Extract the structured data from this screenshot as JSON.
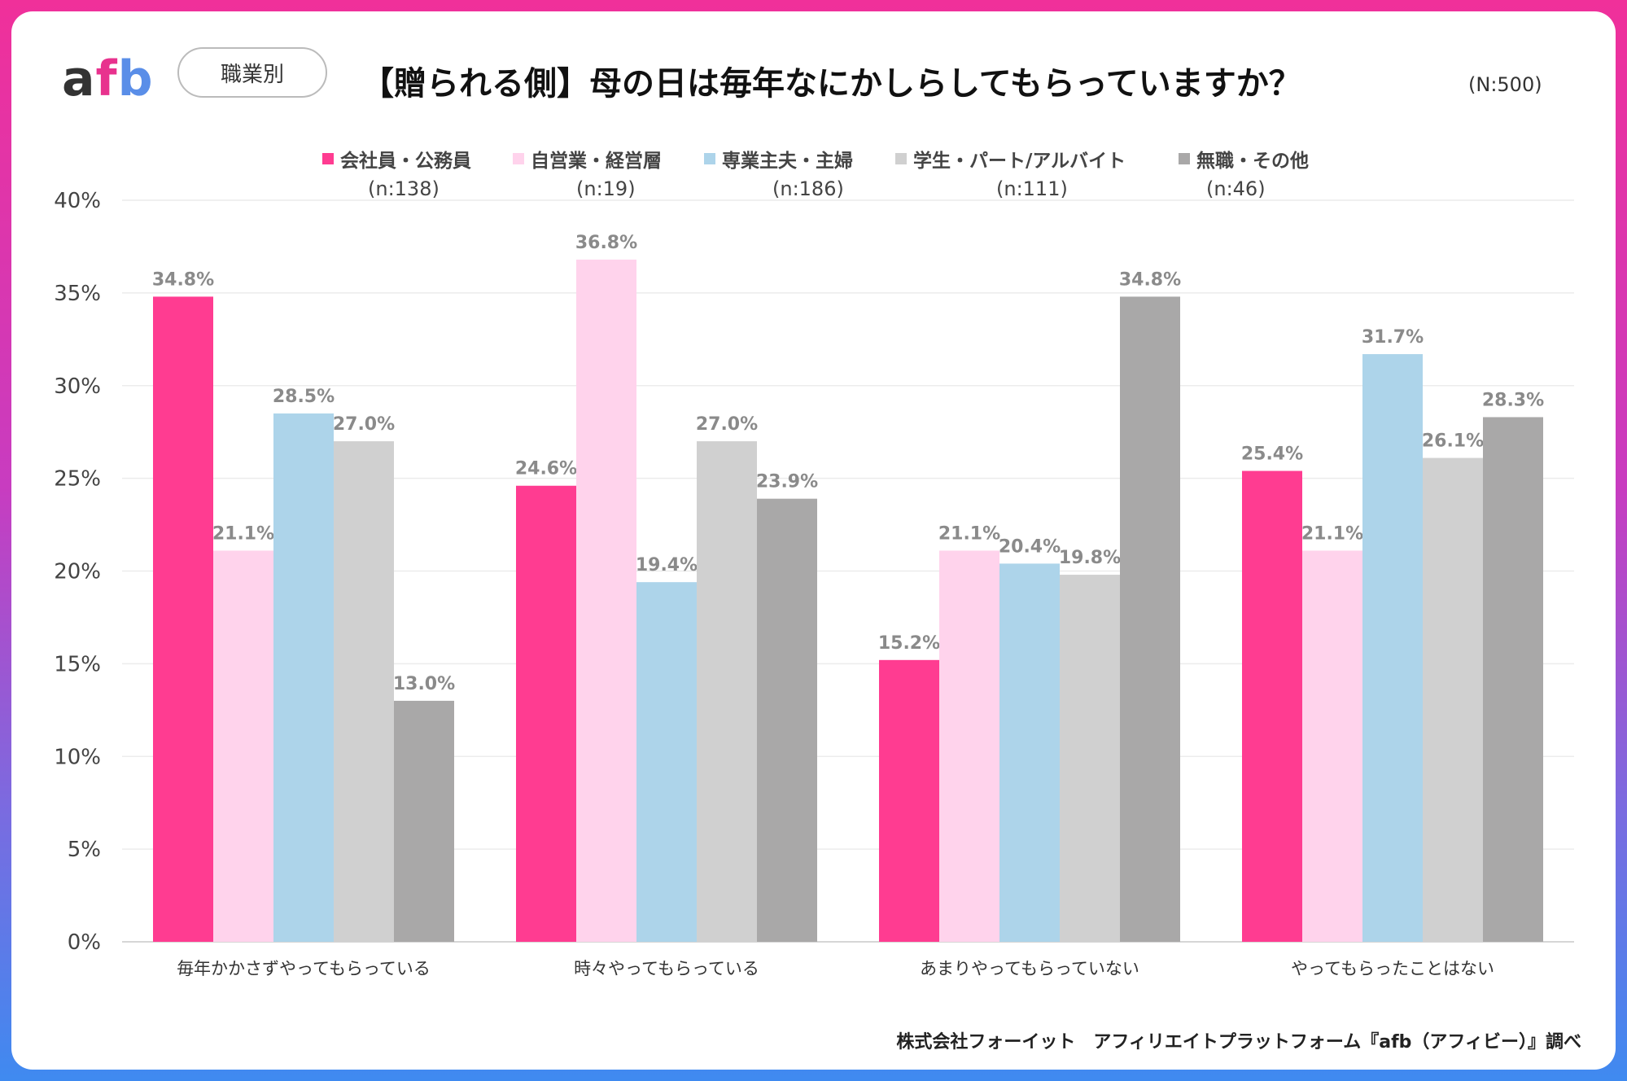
{
  "brand": {
    "logo_a": "a",
    "logo_f": "f",
    "logo_b": "b"
  },
  "header": {
    "badge": "職業別",
    "title": "【贈られる側】母の日は毎年なにかしらしてもらっていますか？",
    "sample": "(N:500)"
  },
  "footer": "株式会社フォーイット　アフィリエイトプラットフォーム『afb（アフィビー）』調べ",
  "chart_data": {
    "type": "bar",
    "title": "【贈られる側】母の日は毎年なにかしらしてもらっていますか？",
    "xlabel": "",
    "ylabel": "",
    "ylim": [
      0,
      40
    ],
    "yticks": [
      0,
      5,
      10,
      15,
      20,
      25,
      30,
      35,
      40
    ],
    "ytick_labels": [
      "0%",
      "5%",
      "10%",
      "15%",
      "20%",
      "25%",
      "30%",
      "35%",
      "40%"
    ],
    "grid": true,
    "legend_position": "top",
    "categories": [
      "毎年かかさずやってもらっている",
      "時々やってもらっている",
      "あまりやってもらっていない",
      "やってもらったことはない"
    ],
    "series": [
      {
        "name": "会社員・公務員",
        "n": "(n:138)",
        "color": "#ff3c91",
        "values": [
          34.8,
          24.6,
          15.2,
          25.4
        ],
        "labels": [
          "34.8%",
          "24.6%",
          "15.2%",
          "25.4%"
        ]
      },
      {
        "name": "自営業・経営層",
        "n": "(n:19)",
        "color": "#ffd3ec",
        "values": [
          21.1,
          36.8,
          21.1,
          21.1
        ],
        "labels": [
          "21.1%",
          "36.8%",
          "21.1%",
          "21.1%"
        ]
      },
      {
        "name": "専業主夫・主婦",
        "n": "(n:186)",
        "color": "#add4ea",
        "values": [
          28.5,
          19.4,
          20.4,
          31.7
        ],
        "labels": [
          "28.5%",
          "19.4%",
          "20.4%",
          "31.7%"
        ]
      },
      {
        "name": "学生・パート/アルバイト",
        "n": "(n:111)",
        "color": "#d0d0d0",
        "values": [
          27.0,
          27.0,
          19.8,
          26.1
        ],
        "labels": [
          "27.0%",
          "27.0%",
          "19.8%",
          "26.1%"
        ]
      },
      {
        "name": "無職・その他",
        "n": "(n:46)",
        "color": "#a9a8a8",
        "values": [
          13.0,
          23.9,
          34.8,
          28.3
        ],
        "labels": [
          "13.0%",
          "23.9%",
          "34.8%",
          "28.3%"
        ]
      }
    ]
  }
}
